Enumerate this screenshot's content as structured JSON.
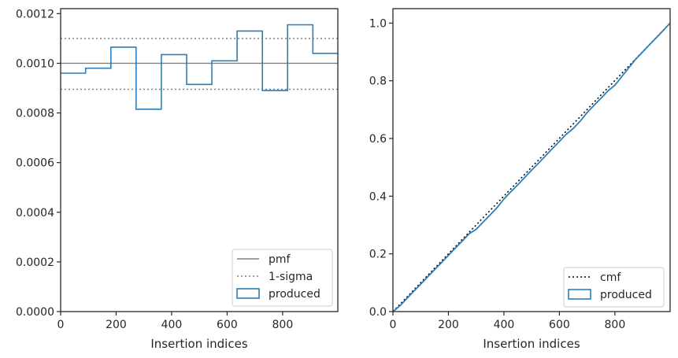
{
  "chart_data": [
    {
      "type": "line",
      "xlabel": "Insertion indices",
      "ylabel": "",
      "xlim": [
        0,
        999
      ],
      "ylim": [
        0,
        0.00122
      ],
      "xticks": [
        0,
        200,
        400,
        600,
        800
      ],
      "xtick_labels": [
        "0",
        "200",
        "400",
        "600",
        "800"
      ],
      "yticks": [
        0,
        0.0002,
        0.0004,
        0.0006,
        0.0008,
        0.001,
        0.0012
      ],
      "ytick_labels": [
        "0.0000",
        "0.0002",
        "0.0004",
        "0.0006",
        "0.0008",
        "0.0010",
        "0.0012"
      ],
      "grid": false,
      "legend_position": "lower right",
      "series": [
        {
          "name": "pmf",
          "kind": "hline",
          "style": "solid",
          "color": "#808080",
          "y": 0.001
        },
        {
          "name": "1-sigma",
          "kind": "hlines",
          "style": "dotted",
          "color": "#808080",
          "y": [
            0.0011,
            0.000895
          ]
        },
        {
          "name": "produced",
          "kind": "step",
          "color": "#2c7fb8",
          "edges": [
            0,
            90,
            181,
            272,
            363,
            454,
            545,
            636,
            727,
            818,
            909,
            999
          ],
          "values": [
            0.00096,
            0.00098,
            0.001065,
            0.000815,
            0.001035,
            0.000915,
            0.00101,
            0.00113,
            0.00089,
            0.001155,
            0.00104
          ]
        }
      ]
    },
    {
      "type": "line",
      "xlabel": "Insertion indices",
      "ylabel": "",
      "xlim": [
        0,
        999
      ],
      "ylim": [
        0,
        1.05
      ],
      "xticks": [
        0,
        200,
        400,
        600,
        800
      ],
      "xtick_labels": [
        "0",
        "200",
        "400",
        "600",
        "800"
      ],
      "yticks": [
        0,
        0.2,
        0.4,
        0.6,
        0.8,
        1.0
      ],
      "ytick_labels": [
        "0.0",
        "0.2",
        "0.4",
        "0.6",
        "0.8",
        "1.0"
      ],
      "grid": false,
      "legend_position": "lower right",
      "series": [
        {
          "name": "cmf",
          "kind": "line",
          "style": "dotted",
          "color": "#000000",
          "x": [
            0,
            999
          ],
          "y": [
            0,
            1.0
          ]
        },
        {
          "name": "produced",
          "kind": "line",
          "color": "#2c7fb8",
          "x": [
            0,
            25,
            50,
            75,
            100,
            125,
            150,
            175,
            200,
            225,
            250,
            275,
            300,
            325,
            350,
            375,
            400,
            425,
            450,
            475,
            500,
            525,
            550,
            575,
            600,
            625,
            650,
            675,
            700,
            725,
            750,
            775,
            800,
            825,
            850,
            875,
            900,
            925,
            950,
            975,
            999
          ],
          "y": [
            0,
            0.02,
            0.045,
            0.07,
            0.095,
            0.12,
            0.145,
            0.17,
            0.195,
            0.22,
            0.245,
            0.27,
            0.285,
            0.31,
            0.335,
            0.36,
            0.39,
            0.415,
            0.44,
            0.465,
            0.49,
            0.515,
            0.54,
            0.565,
            0.59,
            0.615,
            0.635,
            0.66,
            0.69,
            0.715,
            0.74,
            0.765,
            0.785,
            0.815,
            0.845,
            0.875,
            0.9,
            0.925,
            0.95,
            0.975,
            1.0
          ]
        }
      ]
    }
  ]
}
